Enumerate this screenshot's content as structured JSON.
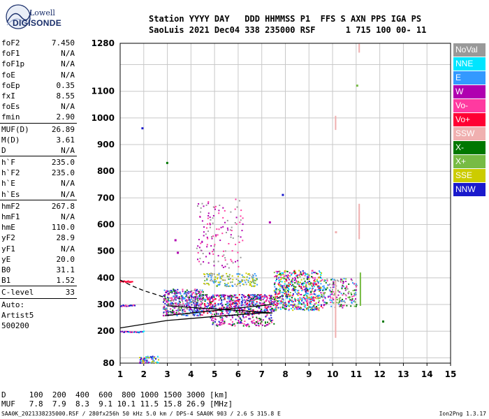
{
  "logo": {
    "line1": "Lowell",
    "line2": "DIGISONDE"
  },
  "header": {
    "line1": "Station YYYY DAY   DDD HHMMSS P1  FFS S AXN PPS IGA PS",
    "line2": "SaoLuis 2021 Dec04 338 235000 RSF      1 715 100 00- 11"
  },
  "params": [
    {
      "label": "foF2",
      "value": "7.450"
    },
    {
      "label": "foF1",
      "value": "N/A"
    },
    {
      "label": "foF1p",
      "value": "N/A"
    },
    {
      "label": "foE",
      "value": "N/A"
    },
    {
      "label": "foEp",
      "value": "0.35"
    },
    {
      "label": "fxI",
      "value": "8.55"
    },
    {
      "label": "foEs",
      "value": "N/A"
    },
    {
      "label": "fmin",
      "value": "2.90"
    },
    {
      "sep": true
    },
    {
      "label": "MUF(D)",
      "value": "26.89"
    },
    {
      "label": "M(D)",
      "value": "3.61"
    },
    {
      "label": "D",
      "value": "N/A"
    },
    {
      "sep": true
    },
    {
      "label": "h`F",
      "value": "235.0"
    },
    {
      "label": "h`F2",
      "value": "235.0"
    },
    {
      "label": "h`E",
      "value": "N/A"
    },
    {
      "label": "h`Es",
      "value": "N/A"
    },
    {
      "sep": true
    },
    {
      "label": "hmF2",
      "value": "267.8"
    },
    {
      "label": "hmF1",
      "value": "N/A"
    },
    {
      "label": "hmE",
      "value": "110.0"
    },
    {
      "label": "yF2",
      "value": "28.9"
    },
    {
      "label": "yF1",
      "value": "N/A"
    },
    {
      "label": "yE",
      "value": "20.0"
    },
    {
      "label": "B0",
      "value": "31.1"
    },
    {
      "label": "B1",
      "value": "1.52"
    },
    {
      "sep": true
    },
    {
      "label": "C-level",
      "value": "33"
    },
    {
      "sep": true
    },
    {
      "text": "Auto:"
    },
    {
      "text": "Artist5"
    },
    {
      "text": "500200"
    }
  ],
  "legend": [
    {
      "label": "NoVal",
      "color": "#999999"
    },
    {
      "label": "NNE",
      "color": "#00e5ff"
    },
    {
      "label": "E",
      "color": "#3399ff"
    },
    {
      "label": "W",
      "color": "#b000b0"
    },
    {
      "label": "Vo-",
      "color": "#ff3aa0"
    },
    {
      "label": "Vo+",
      "color": "#ff0033"
    },
    {
      "label": "SSW",
      "color": "#f0b0b0"
    },
    {
      "label": "X-",
      "color": "#007700"
    },
    {
      "label": "X+",
      "color": "#77bb44"
    },
    {
      "label": "SSE",
      "color": "#cccc00"
    },
    {
      "label": "NNW",
      "color": "#1a1acc"
    }
  ],
  "footer": {
    "row1": "D     100  200  400  600  800 1000 1500 3000 [km]",
    "row2": "MUF   7.8  7.9  8.3  9.1 10.1 11.5 15.8 26.9 [MHz]",
    "file_info": "SAA0K_2021338235000.RSF / 280fx256h 50 kHz 5.0 km / DPS-4 SAA0K 903 / 2.6 S 315.8 E",
    "version": "Ion2Png 1.3.17"
  },
  "chart_data": {
    "type": "scatter",
    "xlim": [
      1,
      15
    ],
    "ylim": [
      80,
      1280
    ],
    "x_ticks": [
      1,
      2,
      3,
      4,
      5,
      6,
      7,
      8,
      9,
      10,
      11,
      12,
      13,
      14,
      15
    ],
    "y_ticks": [
      80,
      200,
      300,
      400,
      500,
      600,
      700,
      800,
      900,
      1000,
      1100,
      1280
    ],
    "x_grid": [
      1,
      2,
      3,
      4,
      5,
      6,
      7,
      8,
      9,
      10,
      11,
      12,
      13,
      14,
      15
    ],
    "y_grid": [
      100,
      200,
      300,
      400,
      500,
      600,
      700,
      800,
      900,
      1000,
      1100,
      1200,
      1280
    ],
    "grid": true,
    "traces": [
      {
        "name": "profile",
        "style": "solid",
        "points": [
          [
            1.0,
            212
          ],
          [
            3.0,
            240
          ],
          [
            5.0,
            255
          ],
          [
            7.0,
            268
          ],
          [
            7.45,
            268
          ],
          [
            6.5,
            275
          ],
          [
            5.0,
            283
          ],
          [
            3.0,
            295
          ]
        ]
      },
      {
        "name": "trace",
        "style": "solid",
        "points": [
          [
            2.9,
            258
          ],
          [
            4.0,
            268
          ],
          [
            5.0,
            277
          ],
          [
            6.0,
            287
          ],
          [
            7.0,
            296
          ],
          [
            7.45,
            300
          ]
        ]
      },
      {
        "name": "extrapolation",
        "style": "dashed",
        "points": [
          [
            1.0,
            392
          ],
          [
            1.5,
            370
          ],
          [
            2.0,
            352
          ],
          [
            2.5,
            338
          ],
          [
            2.9,
            326
          ]
        ]
      }
    ],
    "clusters": [
      {
        "x": [
          2.8,
          4.5
        ],
        "y": [
          260,
          360
        ],
        "n": 450,
        "colors": [
          "#b000b0",
          "#1a1acc",
          "#ff3aa0",
          "#3399ff",
          "#007700",
          "#999999"
        ]
      },
      {
        "x": [
          4.5,
          7.5
        ],
        "y": [
          270,
          340
        ],
        "n": 520,
        "colors": [
          "#b000b0",
          "#ff0033",
          "#ff3aa0",
          "#1a1acc",
          "#007700",
          "#3399ff"
        ]
      },
      {
        "x": [
          4.8,
          7.5
        ],
        "y": [
          220,
          270
        ],
        "n": 160,
        "colors": [
          "#007700",
          "#b000b0",
          "#1a1acc",
          "#ff3aa0"
        ]
      },
      {
        "x": [
          7.5,
          9.5
        ],
        "y": [
          280,
          430
        ],
        "n": 600,
        "colors": [
          "#ff0033",
          "#ff3aa0",
          "#3399ff",
          "#007700",
          "#77bb44",
          "#b000b0",
          "#00e5ff",
          "#cccc00",
          "#1a1acc"
        ]
      },
      {
        "x": [
          9.5,
          11.0
        ],
        "y": [
          290,
          400
        ],
        "n": 200,
        "colors": [
          "#3399ff",
          "#007700",
          "#77bb44",
          "#ff3aa0",
          "#b000b0",
          "#999999"
        ]
      },
      {
        "x": [
          4.5,
          6.8
        ],
        "y": [
          370,
          420
        ],
        "n": 160,
        "colors": [
          "#cccc00",
          "#77bb44",
          "#999999",
          "#3399ff"
        ]
      },
      {
        "x": [
          4.2,
          6.2
        ],
        "y": [
          440,
          700
        ],
        "n": 140,
        "colors": [
          "#b000b0",
          "#999999",
          "#ff3aa0"
        ]
      },
      {
        "x": [
          1.8,
          2.6
        ],
        "y": [
          82,
          108
        ],
        "n": 70,
        "colors": [
          "#3399ff",
          "#cccc00",
          "#b000b0",
          "#1a1acc",
          "#00e5ff"
        ]
      }
    ],
    "lines": [
      {
        "x": [
          1.0,
          2.0
        ],
        "y": 200,
        "colors": [
          "#1a1acc",
          "#ff3aa0",
          "#00e5ff"
        ]
      },
      {
        "x": [
          1.0,
          1.6
        ],
        "y": 298,
        "colors": [
          "#1a1acc",
          "#ff3aa0"
        ]
      },
      {
        "x": [
          1.0,
          1.5
        ],
        "y": 388,
        "colors": [
          "#ff0033"
        ]
      }
    ],
    "columns": [
      {
        "x": 10.1,
        "y": [
          180,
          390
        ],
        "color": "#f0b0b0"
      },
      {
        "x": 10.1,
        "y": [
          960,
          1010
        ],
        "color": "#f0b0b0"
      },
      {
        "x": 11.1,
        "y": [
          550,
          680
        ],
        "color": "#f0b0b0"
      },
      {
        "x": 11.1,
        "y": [
          1250,
          1280
        ],
        "color": "#f0b0b0"
      },
      {
        "x": 11.15,
        "y": [
          300,
          420
        ],
        "color": "#77bb44"
      }
    ],
    "points": [
      {
        "x": 1.9,
        "y": 965,
        "color": "#1a1acc"
      },
      {
        "x": 2.95,
        "y": 835,
        "color": "#007700"
      },
      {
        "x": 7.85,
        "y": 715,
        "color": "#1a1acc"
      },
      {
        "x": 7.3,
        "y": 612,
        "color": "#b000b0"
      },
      {
        "x": 12.1,
        "y": 240,
        "color": "#007700"
      },
      {
        "x": 11.0,
        "y": 1125,
        "color": "#77bb44"
      },
      {
        "x": 10.1,
        "y": 575,
        "color": "#f0b0b0"
      },
      {
        "x": 3.4,
        "y": 498,
        "color": "#b000b0"
      },
      {
        "x": 3.3,
        "y": 545,
        "color": "#b000b0"
      }
    ]
  }
}
